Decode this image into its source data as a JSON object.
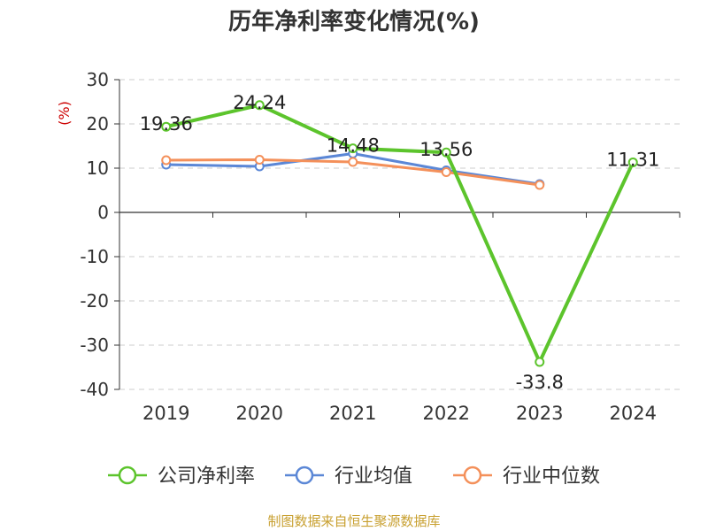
{
  "title": "历年净利率变化情况(%)",
  "footer": "制图数据来自恒生聚源数据库",
  "colors": {
    "company": "#5cc42c",
    "industry_avg": "#5b87d6",
    "industry_median": "#f4905a",
    "axis": "#333333",
    "grid": "#cccccc",
    "unit": "#cc0000",
    "footer": "#c8a030"
  },
  "chart_data": {
    "type": "line",
    "title": "历年净利率变化情况(%)",
    "ylabel": "(%)",
    "xlabel": "",
    "categories": [
      "2019",
      "2020",
      "2021",
      "2022",
      "2023",
      "2024"
    ],
    "ylim": [
      -40,
      30
    ],
    "yticks": [
      30,
      20,
      10,
      0,
      -10,
      -20,
      -30,
      -40
    ],
    "ytick_labels": [
      "30",
      "20",
      "10",
      "0",
      "-10",
      "-20",
      "-30",
      "-40"
    ],
    "grid": true,
    "legend_position": "bottom",
    "series": [
      {
        "name": "公司净利率",
        "color": "#5cc42c",
        "values": [
          19.36,
          24.24,
          14.48,
          13.56,
          -33.8,
          11.31
        ],
        "labels": [
          "19.36",
          "24.24",
          "14.48",
          "13.56",
          "-33.8",
          "11.31"
        ]
      },
      {
        "name": "行业均值",
        "color": "#5b87d6",
        "values": [
          10.8,
          10.4,
          13.3,
          9.5,
          6.4,
          null
        ]
      },
      {
        "name": "行业中位数",
        "color": "#f4905a",
        "values": [
          11.8,
          11.9,
          11.4,
          9.1,
          6.2,
          null
        ]
      }
    ]
  }
}
